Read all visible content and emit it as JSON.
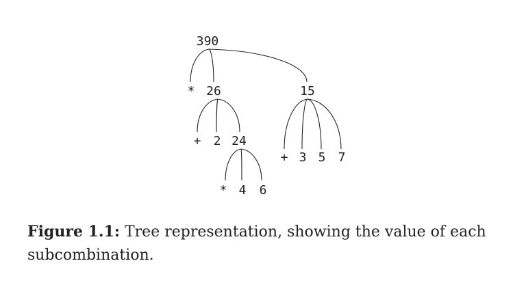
{
  "tree": {
    "nodes": [
      {
        "id": "n390",
        "text": "390"
      },
      {
        "id": "op-mul-1",
        "text": "*"
      },
      {
        "id": "n26",
        "text": "26"
      },
      {
        "id": "n15",
        "text": "15"
      },
      {
        "id": "op-add-1",
        "text": "+"
      },
      {
        "id": "n2",
        "text": "2"
      },
      {
        "id": "n24",
        "text": "24"
      },
      {
        "id": "op-mul-2",
        "text": "*"
      },
      {
        "id": "n4",
        "text": "4"
      },
      {
        "id": "n6",
        "text": "6"
      },
      {
        "id": "op-add-2",
        "text": "+"
      },
      {
        "id": "n3",
        "text": "3"
      },
      {
        "id": "n5",
        "text": "5"
      },
      {
        "id": "n7",
        "text": "7"
      }
    ],
    "edges": [
      [
        "n390",
        "op-mul-1"
      ],
      [
        "n390",
        "n26"
      ],
      [
        "n390",
        "n15"
      ],
      [
        "n26",
        "op-add-1"
      ],
      [
        "n26",
        "n2"
      ],
      [
        "n26",
        "n24"
      ],
      [
        "n24",
        "op-mul-2"
      ],
      [
        "n24",
        "n4"
      ],
      [
        "n24",
        "n6"
      ],
      [
        "n15",
        "op-add-2"
      ],
      [
        "n15",
        "n3"
      ],
      [
        "n15",
        "n5"
      ],
      [
        "n15",
        "n7"
      ]
    ]
  },
  "caption": {
    "label": "Figure 1.1:",
    "text": " Tree representation, showing the value of each subcombination."
  }
}
